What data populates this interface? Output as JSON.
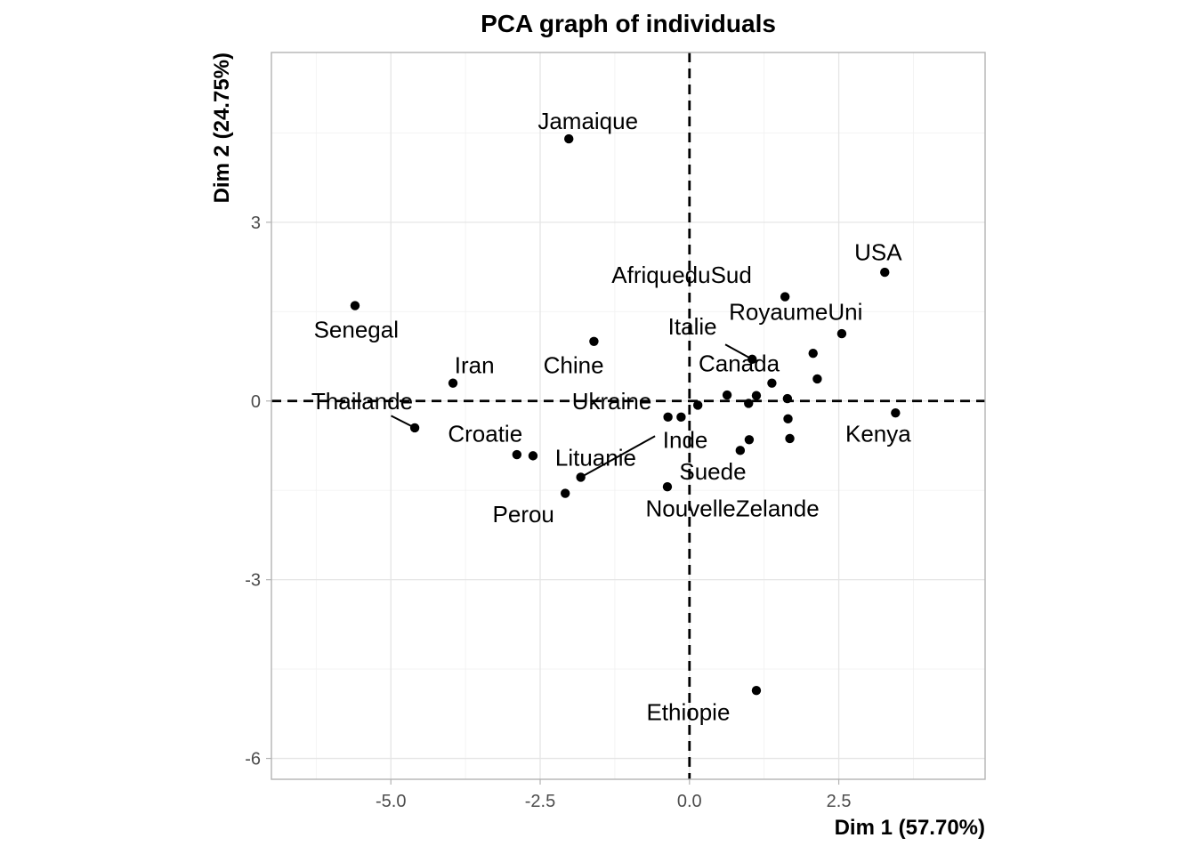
{
  "chart_data": {
    "type": "scatter",
    "title": "PCA graph of individuals",
    "xlabel": "Dim 1 (57.70%)",
    "ylabel": "Dim 2 (24.75%)",
    "xlim": [
      -7.0,
      4.95
    ],
    "ylim": [
      -6.35,
      5.85
    ],
    "x_ticks": [
      {
        "value": -5.0,
        "label": "-5.0"
      },
      {
        "value": -2.5,
        "label": "-2.5"
      },
      {
        "value": 0.0,
        "label": "0.0"
      },
      {
        "value": 2.5,
        "label": "2.5"
      }
    ],
    "y_ticks": [
      {
        "value": -6,
        "label": "-6"
      },
      {
        "value": -3,
        "label": "-3"
      },
      {
        "value": 0,
        "label": "0"
      },
      {
        "value": 3,
        "label": "3"
      }
    ],
    "grid": true,
    "reference_lines": {
      "x": 0,
      "y": 0,
      "style": "dashed"
    },
    "points": [
      {
        "label": "Jamaique",
        "x": -2.02,
        "y": 4.4,
        "lx": -1.7,
        "ly": 4.7
      },
      {
        "label": "Senegal",
        "x": -5.6,
        "y": 1.6,
        "lx": -5.58,
        "ly": 1.2
      },
      {
        "label": "Iran",
        "x": -3.96,
        "y": 0.3,
        "lx": -3.6,
        "ly": 0.6
      },
      {
        "label": "Chine",
        "x": -1.6,
        "y": 1.0,
        "lx": -1.94,
        "ly": 0.6
      },
      {
        "label": "Thailande",
        "x": -4.6,
        "y": -0.45,
        "lx": -5.48,
        "ly": 0.0,
        "leader": true
      },
      {
        "label": "Croatie",
        "x": -2.89,
        "y": -0.9,
        "lx": -3.42,
        "ly": -0.55
      },
      {
        "label": "Perou",
        "x": -2.08,
        "y": -1.55,
        "lx": -2.78,
        "ly": -1.9
      },
      {
        "label": "Lituanie",
        "x": -2.62,
        "y": -0.92,
        "lx": -1.57,
        "ly": -0.95
      },
      {
        "label": "",
        "x": -1.82,
        "y": -1.28
      },
      {
        "label": "Ukraine",
        "x": -0.36,
        "y": -0.27,
        "lx": -1.3,
        "ly": 0.0
      },
      {
        "label": "",
        "x": -0.14,
        "y": -0.27
      },
      {
        "label": "Inde",
        "x": 0.14,
        "y": -0.07,
        "lx": -0.07,
        "ly": -0.65,
        "leader_to": 8
      },
      {
        "label": "NouvelleZelande",
        "x": -0.37,
        "y": -1.44,
        "lx": 0.72,
        "ly": -1.8
      },
      {
        "label": "",
        "x": 0.63,
        "y": 0.1
      },
      {
        "label": "",
        "x": 0.99,
        "y": -0.04
      },
      {
        "label": "",
        "x": 1.12,
        "y": 0.09
      },
      {
        "label": "",
        "x": 1.38,
        "y": 0.3
      },
      {
        "label": "",
        "x": 1.64,
        "y": 0.04
      },
      {
        "label": "",
        "x": 1.65,
        "y": -0.3
      },
      {
        "label": "",
        "x": 1.68,
        "y": -0.63
      },
      {
        "label": "",
        "x": 1.0,
        "y": -0.65
      },
      {
        "label": "Suede",
        "x": 0.85,
        "y": -0.83,
        "lx": 0.39,
        "ly": -1.18
      },
      {
        "label": "Italie",
        "x": 1.05,
        "y": 0.7,
        "lx": 0.05,
        "ly": 1.25,
        "leader": true
      },
      {
        "label": "Canada",
        "x": 2.07,
        "y": 0.8,
        "lx": 0.83,
        "ly": 0.63
      },
      {
        "label": "",
        "x": 2.14,
        "y": 0.37
      },
      {
        "label": "AfriqueduSud",
        "x": 1.6,
        "y": 1.75,
        "lx": -0.13,
        "ly": 2.12
      },
      {
        "label": "RoyaumeUni",
        "x": 2.55,
        "y": 1.13,
        "lx": 1.78,
        "ly": 1.5
      },
      {
        "label": "USA",
        "x": 3.27,
        "y": 2.16,
        "lx": 3.16,
        "ly": 2.5
      },
      {
        "label": "Kenya",
        "x": 3.45,
        "y": -0.2,
        "lx": 3.16,
        "ly": -0.55
      },
      {
        "label": "Ethiopie",
        "x": 1.12,
        "y": -4.86,
        "lx": -0.02,
        "ly": -5.22
      }
    ]
  }
}
